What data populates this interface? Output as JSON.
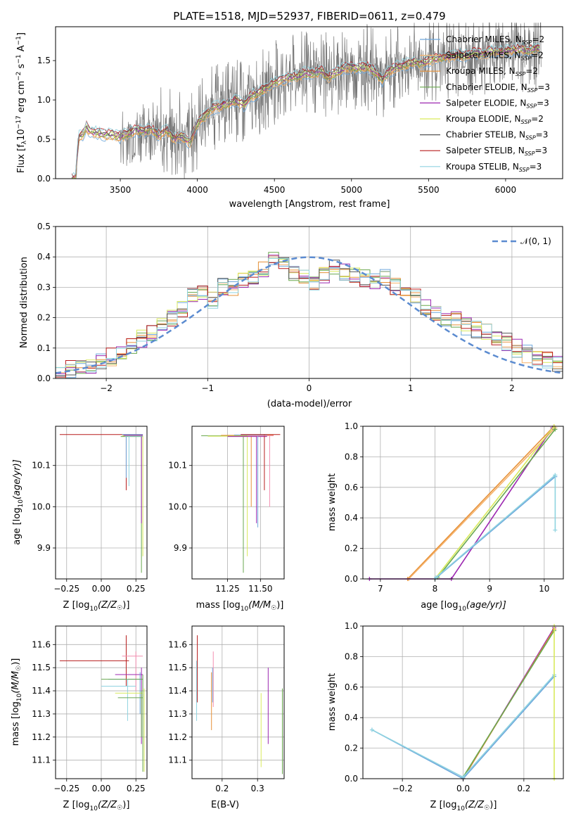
{
  "figure_title": "PLATE=1518, MJD=52937, FIBERID=0611, z=0.479",
  "legend_spectrum": [
    {
      "name": "Chabrier MILES",
      "nssp": "2",
      "color": "#6fa8dc"
    },
    {
      "name": "Salpeter MILES",
      "nssp": "2",
      "color": "#f6b26b"
    },
    {
      "name": "Kroupa MILES",
      "nssp": "2",
      "color": "#e69138"
    },
    {
      "name": "Chabrier ELODIE",
      "nssp": "3",
      "color": "#6aa84f"
    },
    {
      "name": "Salpeter ELODIE",
      "nssp": "3",
      "color": "#9c27b0"
    },
    {
      "name": "Kroupa ELODIE",
      "nssp": "2",
      "color": "#d9ea5b"
    },
    {
      "name": "Chabrier STELIB",
      "nssp": "3",
      "color": "#555555"
    },
    {
      "name": "Salpeter STELIB",
      "nssp": "3",
      "color": "#b71c1c"
    },
    {
      "name": "Kroupa STELIB",
      "nssp": "3",
      "color": "#8fd3e0"
    }
  ],
  "legend_sub": "SSP",
  "legend_normal": "𝒩(0, 1)",
  "chart_data": [
    {
      "type": "line",
      "id": "spectrum",
      "xlabel": "wavelength [Angstrom, rest frame]",
      "ylabel_main": "Flux [f",
      "ylabel_lambda": "λ",
      "ylabel_rest": "10",
      "ylabel_exp1": "−17",
      "ylabel_mid": " erg cm",
      "ylabel_exp2": "−2",
      "ylabel_mid2": " s",
      "ylabel_exp3": "−1",
      "ylabel_mid3": " A",
      "ylabel_exp4": "−1",
      "ylabel_end": "]",
      "xlim": [
        3080,
        6370
      ],
      "ylim": [
        0,
        1.93
      ],
      "xticks": [
        "3500",
        "4000",
        "4500",
        "5000",
        "5500",
        "6000"
      ],
      "xtick_values": [
        3500,
        4000,
        4500,
        5000,
        5500,
        6000
      ],
      "yticks": [
        "0.0",
        "0.5",
        "1.0",
        "1.5"
      ],
      "ytick_values": [
        0,
        0.5,
        1.0,
        1.5
      ],
      "data_x_range": [
        3185,
        6230
      ],
      "model_points": [
        [
          3185,
          0.0
        ],
        [
          3215,
          0.0
        ],
        [
          3225,
          0.52
        ],
        [
          3260,
          0.57
        ],
        [
          3280,
          0.66
        ],
        [
          3300,
          0.6
        ],
        [
          3350,
          0.58
        ],
        [
          3400,
          0.56
        ],
        [
          3450,
          0.55
        ],
        [
          3500,
          0.53
        ],
        [
          3550,
          0.57
        ],
        [
          3600,
          0.62
        ],
        [
          3650,
          0.6
        ],
        [
          3700,
          0.63
        ],
        [
          3750,
          0.55
        ],
        [
          3800,
          0.62
        ],
        [
          3850,
          0.5
        ],
        [
          3900,
          0.55
        ],
        [
          3950,
          0.45
        ],
        [
          4000,
          0.7
        ],
        [
          4050,
          0.8
        ],
        [
          4100,
          0.9
        ],
        [
          4150,
          0.92
        ],
        [
          4200,
          0.95
        ],
        [
          4250,
          1.0
        ],
        [
          4300,
          0.93
        ],
        [
          4350,
          1.05
        ],
        [
          4400,
          1.1
        ],
        [
          4450,
          1.15
        ],
        [
          4500,
          1.22
        ],
        [
          4550,
          1.25
        ],
        [
          4600,
          1.28
        ],
        [
          4650,
          1.3
        ],
        [
          4700,
          1.35
        ],
        [
          4750,
          1.32
        ],
        [
          4800,
          1.38
        ],
        [
          4850,
          1.28
        ],
        [
          4900,
          1.35
        ],
        [
          4950,
          1.4
        ],
        [
          5000,
          1.42
        ],
        [
          5050,
          1.4
        ],
        [
          5100,
          1.42
        ],
        [
          5150,
          1.36
        ],
        [
          5200,
          1.25
        ],
        [
          5250,
          1.38
        ],
        [
          5300,
          1.42
        ],
        [
          5350,
          1.45
        ],
        [
          5400,
          1.48
        ],
        [
          5450,
          1.46
        ],
        [
          5500,
          1.5
        ],
        [
          5550,
          1.52
        ],
        [
          5600,
          1.54
        ],
        [
          5650,
          1.55
        ],
        [
          5700,
          1.58
        ],
        [
          5750,
          1.55
        ],
        [
          5800,
          1.6
        ],
        [
          5850,
          1.58
        ],
        [
          5900,
          1.62
        ],
        [
          5950,
          1.6
        ],
        [
          6000,
          1.62
        ],
        [
          6050,
          1.63
        ],
        [
          6100,
          1.65
        ],
        [
          6150,
          1.62
        ],
        [
          6200,
          1.66
        ],
        [
          6230,
          1.65
        ]
      ]
    },
    {
      "type": "line",
      "id": "residuals",
      "xlabel": "(data-model)/error",
      "ylabel": "Normed distribution",
      "xlim": [
        -2.5,
        2.5
      ],
      "ylim": [
        0,
        0.5
      ],
      "xticks": [
        "−2",
        "−1",
        "0",
        "1",
        "2"
      ],
      "xtick_values": [
        -2,
        -1,
        0,
        1,
        2
      ],
      "yticks": [
        "0.0",
        "0.1",
        "0.2",
        "0.3",
        "0.4",
        "0.5"
      ],
      "ytick_values": [
        0,
        0.1,
        0.2,
        0.3,
        0.4,
        0.5
      ],
      "grid": true,
      "legend_position": "upper right",
      "normal_curve": {
        "mean": 0,
        "sigma": 1,
        "color": "#5b8bd0",
        "style": "dashed"
      },
      "histogram_base": [
        0.02,
        0.03,
        0.03,
        0.04,
        0.06,
        0.07,
        0.08,
        0.11,
        0.13,
        0.15,
        0.18,
        0.2,
        0.23,
        0.27,
        0.28,
        0.26,
        0.3,
        0.3,
        0.32,
        0.33,
        0.36,
        0.4,
        0.37,
        0.35,
        0.33,
        0.32,
        0.34,
        0.36,
        0.35,
        0.34,
        0.33,
        0.32,
        0.33,
        0.3,
        0.29,
        0.27,
        0.24,
        0.22,
        0.2,
        0.19,
        0.17,
        0.16,
        0.15,
        0.13,
        0.12,
        0.1,
        0.08,
        0.07,
        0.06,
        0.05
      ]
    },
    {
      "type": "scatter",
      "id": "age_vs_Z",
      "xlabel": "Z [log",
      "xlabel_sub": "10",
      "xlabel_end": "(Z/Z",
      "xlabel_sun": "☉",
      "xlabel_close": ")]",
      "ylabel": "age  [log",
      "ylabel_sub": "10",
      "ylabel_end": "(age/yr)]",
      "xlim": [
        -0.33,
        0.33
      ],
      "ylim": [
        9.825,
        10.195
      ],
      "xticks": [
        "−0.25",
        "0.00",
        "0.25"
      ],
      "xtick_values": [
        -0.25,
        0,
        0.25
      ],
      "yticks": [
        "9.9",
        "10.0",
        "10.1"
      ],
      "ytick_values": [
        9.9,
        10.0,
        10.1
      ],
      "grid": true
    },
    {
      "type": "scatter",
      "id": "age_vs_mass",
      "xlabel": "mass [log",
      "xlabel_sub": "10",
      "xlabel_end": "(M/M",
      "xlabel_sun": "☉",
      "xlabel_close": ")]",
      "xlim": [
        10.98,
        11.68
      ],
      "ylim": [
        9.825,
        10.195
      ],
      "xticks": [
        "11.25",
        "11.50"
      ],
      "xtick_values": [
        11.25,
        11.5
      ],
      "yticks": [
        "9.9",
        "10.0",
        "10.1"
      ],
      "ytick_values": [
        9.9,
        10.0,
        10.1
      ],
      "grid": true
    },
    {
      "type": "line",
      "id": "massweight_vs_age",
      "xlabel": "age  [log",
      "xlabel_sub": "10",
      "xlabel_end": "(age/yr)]",
      "ylabel": "mass weight",
      "xlim": [
        6.68,
        10.35
      ],
      "ylim": [
        0,
        1.0
      ],
      "xticks": [
        "7",
        "8",
        "9",
        "10"
      ],
      "xtick_values": [
        7,
        8,
        9,
        10
      ],
      "yticks": [
        "0.0",
        "0.2",
        "0.4",
        "0.6",
        "0.8",
        "1.0"
      ],
      "ytick_values": [
        0,
        0.2,
        0.4,
        0.6,
        0.8,
        1.0
      ],
      "grid": true,
      "series": [
        {
          "color": "#e69138",
          "points": [
            [
              7.5,
              0.0
            ],
            [
              10.18,
              1.0
            ]
          ]
        },
        {
          "color": "#f6b26b",
          "points": [
            [
              7.52,
              0.0
            ],
            [
              10.2,
              0.99
            ]
          ]
        },
        {
          "color": "#9c27b0",
          "points": [
            [
              6.8,
              0.0
            ],
            [
              8.3,
              0.0
            ],
            [
              10.15,
              0.99
            ]
          ]
        },
        {
          "color": "#d9ea5b",
          "points": [
            [
              8.0,
              0.0
            ],
            [
              10.18,
              1.0
            ]
          ]
        },
        {
          "color": "#6aa84f",
          "points": [
            [
              8.05,
              0.01
            ],
            [
              10.2,
              0.98
            ]
          ]
        },
        {
          "color": "#6fa8dc",
          "points": [
            [
              8.0,
              0.0
            ],
            [
              10.2,
              0.67
            ]
          ]
        },
        {
          "color": "#8fd3e0",
          "points": [
            [
              8.02,
              0.01
            ],
            [
              10.2,
              0.68
            ]
          ]
        },
        {
          "color": "#8fd3e0",
          "points": [
            [
              10.2,
              0.32
            ],
            [
              10.2,
              0.68
            ]
          ]
        }
      ]
    },
    {
      "type": "scatter",
      "id": "mass_vs_Z",
      "xlabel": "Z [log",
      "xlabel_sub": "10",
      "xlabel_end": "(Z/Z",
      "xlabel_sun": "☉",
      "xlabel_close": ")]",
      "ylabel": "mass [log",
      "ylabel_sub": "10",
      "ylabel_end": "(M/M",
      "ylabel_sun": "☉",
      "ylabel_close": ")]",
      "xlim": [
        -0.33,
        0.33
      ],
      "ylim": [
        11.02,
        11.68
      ],
      "xticks": [
        "−0.25",
        "0.00",
        "0.25"
      ],
      "xtick_values": [
        -0.25,
        0,
        0.25
      ],
      "yticks": [
        "11.1",
        "11.2",
        "11.3",
        "11.4",
        "11.5",
        "11.6"
      ],
      "ytick_values": [
        11.1,
        11.2,
        11.3,
        11.4,
        11.5,
        11.6
      ],
      "grid": true
    },
    {
      "type": "scatter",
      "id": "mass_vs_ebv",
      "xlabel": "E(B-V)",
      "xlim": [
        0.115,
        0.375
      ],
      "ylim": [
        11.02,
        11.68
      ],
      "xticks": [
        "0.2",
        "0.3"
      ],
      "xtick_values": [
        0.2,
        0.3
      ],
      "yticks": [
        "11.1",
        "11.2",
        "11.3",
        "11.4",
        "11.5",
        "11.6"
      ],
      "ytick_values": [
        11.1,
        11.2,
        11.3,
        11.4,
        11.5,
        11.6
      ],
      "grid": true
    },
    {
      "type": "line",
      "id": "massweight_vs_Z",
      "xlabel": "Z [log",
      "xlabel_sub": "10",
      "xlabel_end": "(Z/Z",
      "xlabel_sun": "☉",
      "xlabel_close": ")]",
      "ylabel": "mass weight",
      "xlim": [
        -0.33,
        0.33
      ],
      "ylim": [
        0,
        1.0
      ],
      "xticks": [
        "−0.2",
        "0.0",
        "0.2"
      ],
      "xtick_values": [
        -0.2,
        0,
        0.2
      ],
      "yticks": [
        "0.0",
        "0.2",
        "0.4",
        "0.6",
        "0.8",
        "1.0"
      ],
      "ytick_values": [
        0,
        0.2,
        0.4,
        0.6,
        0.8,
        1.0
      ],
      "grid": true,
      "series": [
        {
          "color": "#9c27b0",
          "points": [
            [
              0.0,
              0.0
            ],
            [
              0.3,
              0.99
            ]
          ]
        },
        {
          "color": "#e69138",
          "points": [
            [
              0.0,
              0.0
            ],
            [
              0.3,
              0.98
            ]
          ]
        },
        {
          "color": "#6aa84f",
          "points": [
            [
              0.0,
              0.01
            ],
            [
              0.3,
              0.97
            ]
          ]
        },
        {
          "color": "#6fa8dc",
          "points": [
            [
              -0.3,
              0.32
            ],
            [
              0.0,
              0.0
            ],
            [
              0.3,
              0.67
            ]
          ]
        },
        {
          "color": "#8fd3e0",
          "points": [
            [
              -0.3,
              0.32
            ],
            [
              0.0,
              0.01
            ],
            [
              0.3,
              0.68
            ]
          ]
        },
        {
          "color": "#d9ea5b",
          "points": [
            [
              0.3,
              0.0
            ],
            [
              0.3,
              1.0
            ]
          ]
        }
      ]
    }
  ]
}
